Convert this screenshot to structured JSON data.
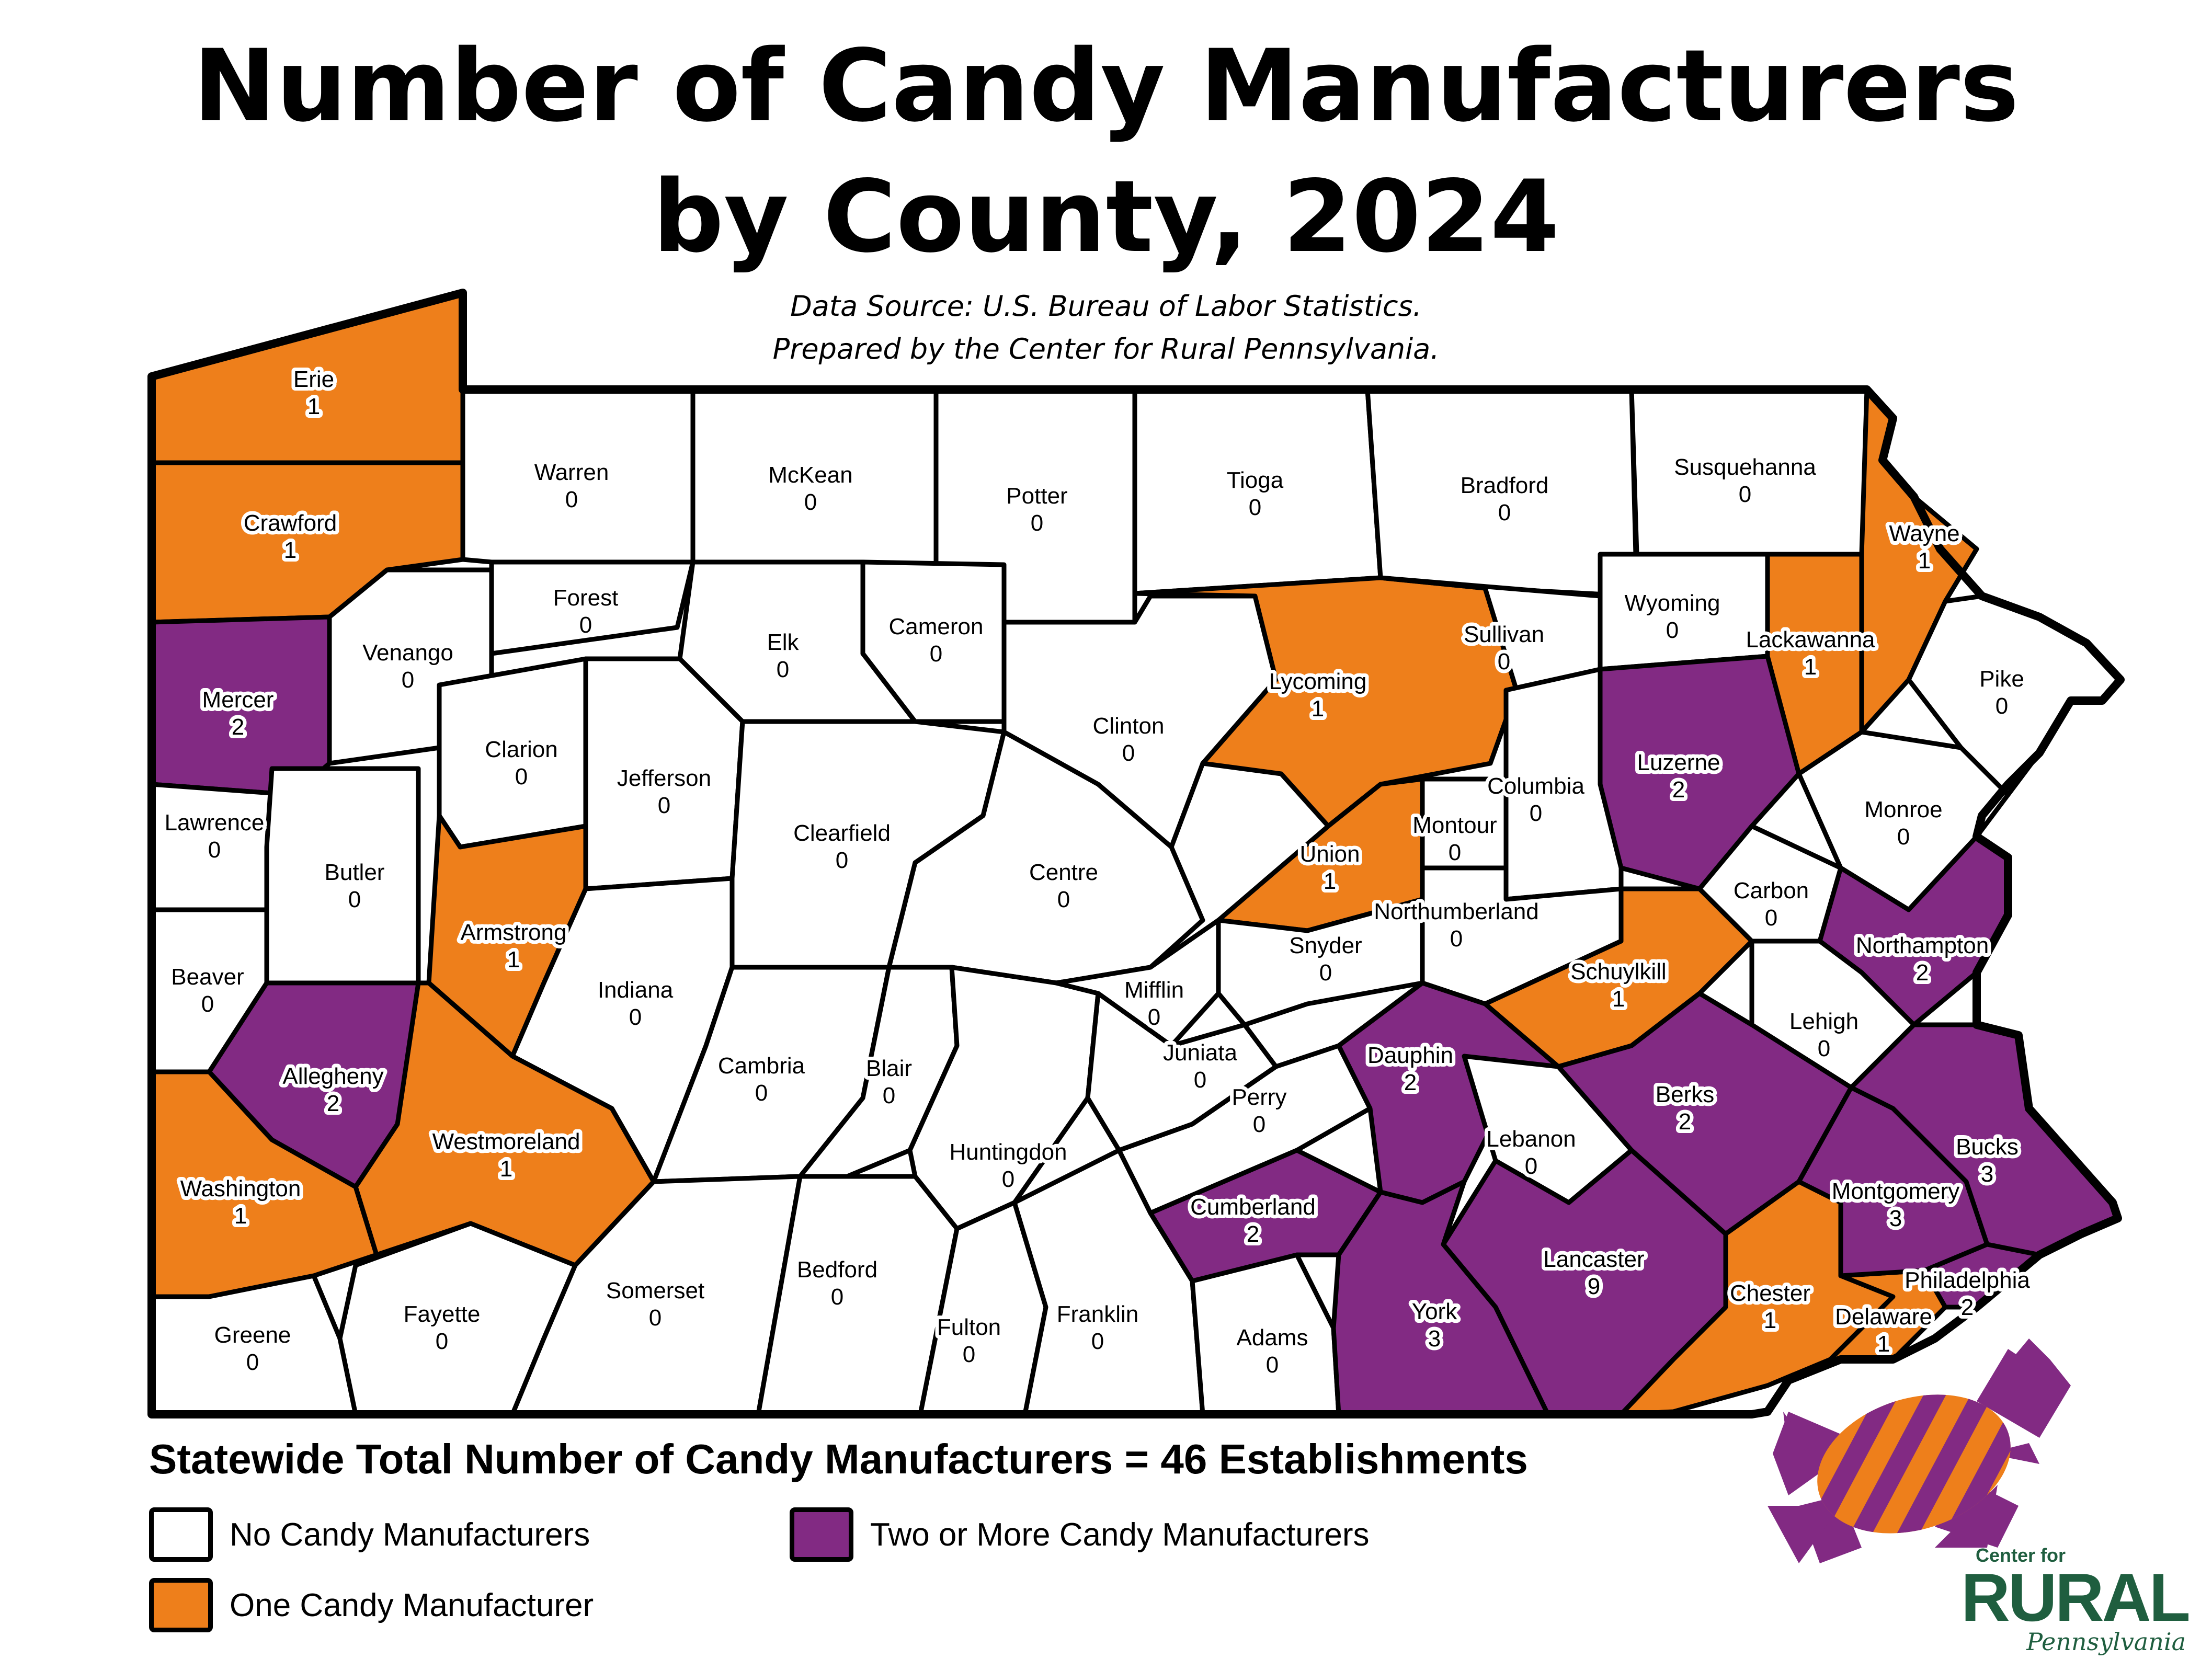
{
  "title": {
    "line1": "Number of Candy Manufacturers",
    "line2": "by County, 2024"
  },
  "source": {
    "line1": "Data Source: U.S. Bureau of Labor Statistics.",
    "line2": "Prepared by the Center for Rural Pennsylvania."
  },
  "total_text": "Statewide Total Number of Candy Manufacturers = 46 Establishments",
  "legend": {
    "none": {
      "label": "No Candy Manufacturers",
      "color": "#ffffff"
    },
    "one": {
      "label": "One Candy Manufacturer",
      "color": "#ee7f1b"
    },
    "two_plus": {
      "label": "Two or More Candy Manufacturers",
      "color": "#822a83"
    }
  },
  "logo": {
    "small": "Center for",
    "big": "RURAL",
    "state": "Pennsylvania"
  },
  "counties": [
    {
      "name": "Erie",
      "count": 1
    },
    {
      "name": "Crawford",
      "count": 1
    },
    {
      "name": "Warren",
      "count": 0
    },
    {
      "name": "McKean",
      "count": 0
    },
    {
      "name": "Potter",
      "count": 0
    },
    {
      "name": "Tioga",
      "count": 0
    },
    {
      "name": "Bradford",
      "count": 0
    },
    {
      "name": "Susquehanna",
      "count": 0
    },
    {
      "name": "Wayne",
      "count": 1
    },
    {
      "name": "Mercer",
      "count": 2
    },
    {
      "name": "Venango",
      "count": 0
    },
    {
      "name": "Forest",
      "count": 0
    },
    {
      "name": "Elk",
      "count": 0
    },
    {
      "name": "Cameron",
      "count": 0
    },
    {
      "name": "Clinton",
      "count": 0
    },
    {
      "name": "Lycoming",
      "count": 1
    },
    {
      "name": "Sullivan",
      "count": 0
    },
    {
      "name": "Wyoming",
      "count": 0
    },
    {
      "name": "Lackawanna",
      "count": 1
    },
    {
      "name": "Pike",
      "count": 0
    },
    {
      "name": "Lawrence",
      "count": 0
    },
    {
      "name": "Butler",
      "count": 0
    },
    {
      "name": "Clarion",
      "count": 0
    },
    {
      "name": "Jefferson",
      "count": 0
    },
    {
      "name": "Clearfield",
      "count": 0
    },
    {
      "name": "Centre",
      "count": 0
    },
    {
      "name": "Union",
      "count": 1
    },
    {
      "name": "Montour",
      "count": 0
    },
    {
      "name": "Columbia",
      "count": 0
    },
    {
      "name": "Luzerne",
      "count": 2
    },
    {
      "name": "Monroe",
      "count": 0
    },
    {
      "name": "Beaver",
      "count": 0
    },
    {
      "name": "Armstrong",
      "count": 1
    },
    {
      "name": "Indiana",
      "count": 0
    },
    {
      "name": "Cambria",
      "count": 0
    },
    {
      "name": "Blair",
      "count": 0
    },
    {
      "name": "Huntingdon",
      "count": 0
    },
    {
      "name": "Mifflin",
      "count": 0
    },
    {
      "name": "Juniata",
      "count": 0
    },
    {
      "name": "Snyder",
      "count": 0
    },
    {
      "name": "Northumberland",
      "count": 0
    },
    {
      "name": "Schuylkill",
      "count": 1
    },
    {
      "name": "Carbon",
      "count": 0
    },
    {
      "name": "Northampton",
      "count": 2
    },
    {
      "name": "Lehigh",
      "count": 0
    },
    {
      "name": "Allegheny",
      "count": 2
    },
    {
      "name": "Westmoreland",
      "count": 1
    },
    {
      "name": "Washington",
      "count": 1
    },
    {
      "name": "Greene",
      "count": 0
    },
    {
      "name": "Fayette",
      "count": 0
    },
    {
      "name": "Somerset",
      "count": 0
    },
    {
      "name": "Bedford",
      "count": 0
    },
    {
      "name": "Fulton",
      "count": 0
    },
    {
      "name": "Franklin",
      "count": 0
    },
    {
      "name": "Adams",
      "count": 0
    },
    {
      "name": "Perry",
      "count": 0
    },
    {
      "name": "Cumberland",
      "count": 2
    },
    {
      "name": "Dauphin",
      "count": 2
    },
    {
      "name": "Lebanon",
      "count": 0
    },
    {
      "name": "Berks",
      "count": 2
    },
    {
      "name": "Lancaster",
      "count": 9
    },
    {
      "name": "York",
      "count": 3
    },
    {
      "name": "Chester",
      "count": 1
    },
    {
      "name": "Delaware",
      "count": 1
    },
    {
      "name": "Montgomery",
      "count": 3
    },
    {
      "name": "Bucks",
      "count": 3
    },
    {
      "name": "Philadelphia",
      "count": 2
    }
  ]
}
